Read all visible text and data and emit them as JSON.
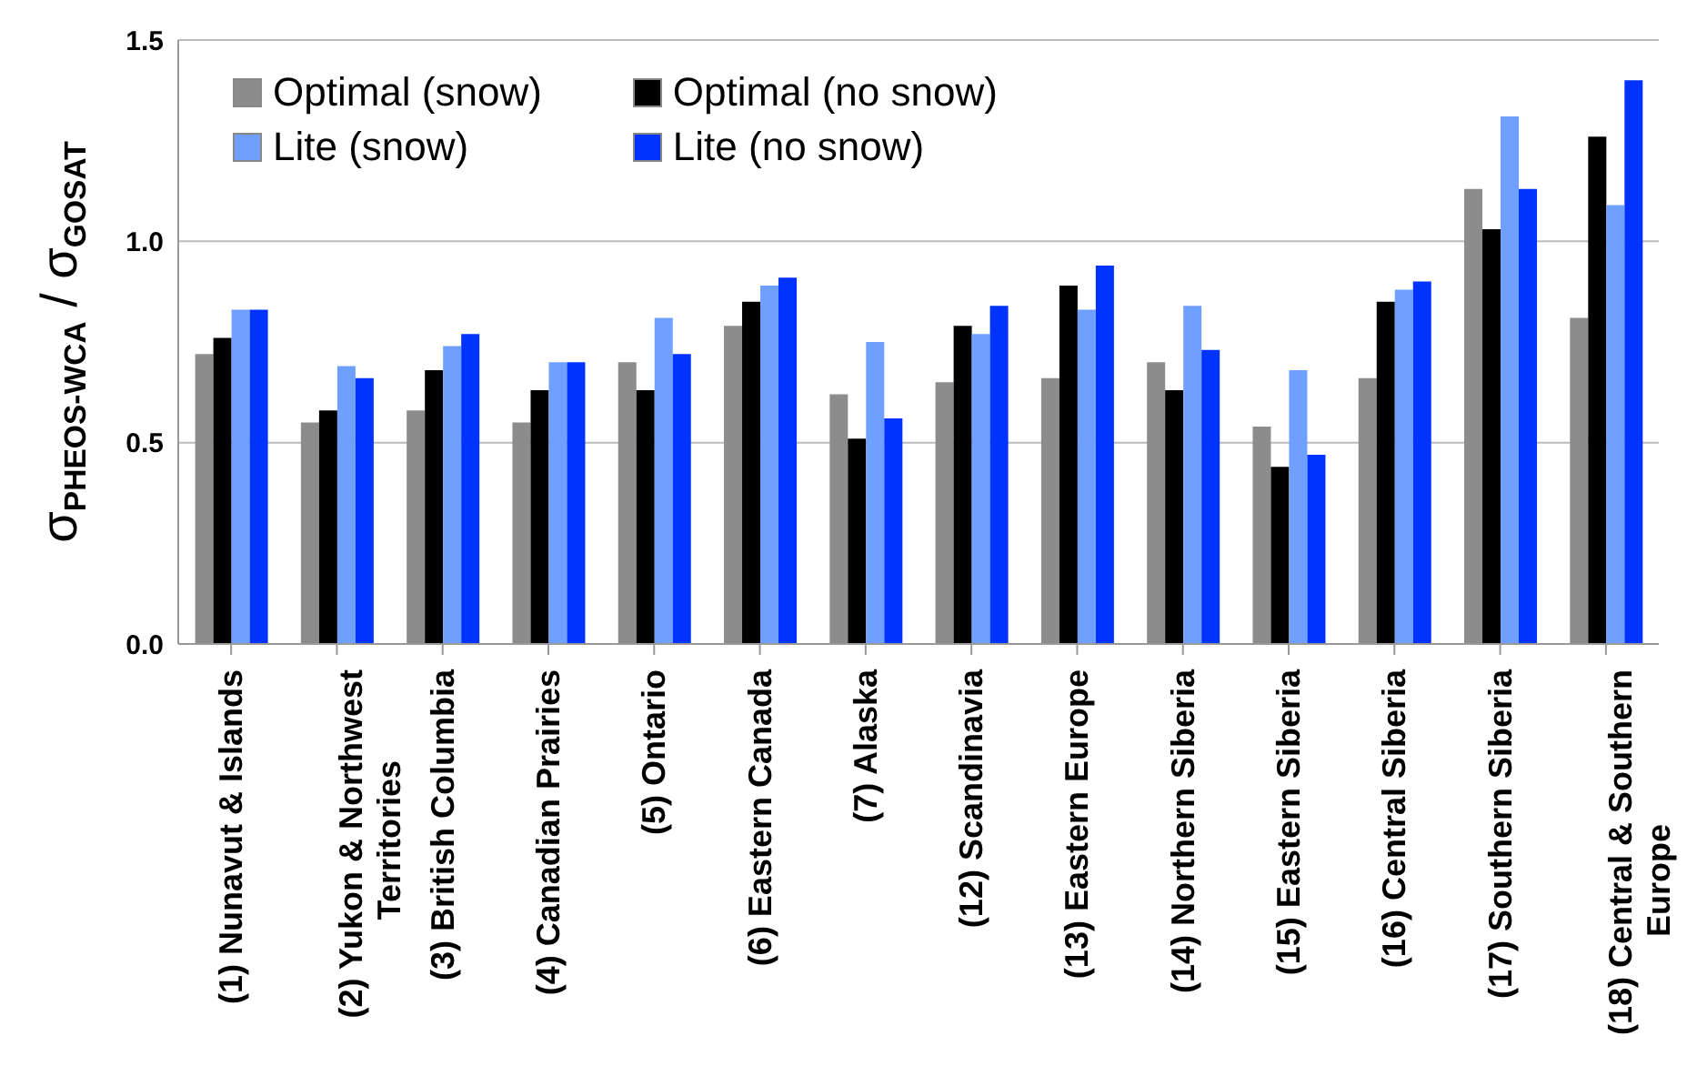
{
  "chart_data": {
    "type": "bar",
    "ylabel": "σ$_{PHEOS-WCA}$ / σ$_{GOSAT}$",
    "categories": [
      "(1) Nunavut & Islands",
      "(2) Yukon & Northwest Territories",
      "(3) British Columbia",
      "(4) Canadian Prairies",
      "(5) Ontario",
      "(6) Eastern Canada",
      "(7) Alaska",
      "(12) Scandinavia",
      "(13) Eastern Europe",
      "(14) Northern Siberia",
      "(15) Eastern Siberia",
      "(16) Central Siberia",
      "(17) Southern Siberia",
      "(18) Central & Southern Europe"
    ],
    "series": [
      {
        "name": "Optimal (snow)",
        "color": "#8c8c8c",
        "values": [
          0.72,
          0.55,
          0.58,
          0.55,
          0.7,
          0.79,
          0.62,
          0.65,
          0.66,
          0.7,
          0.54,
          0.66,
          1.13,
          0.81
        ]
      },
      {
        "name": "Optimal (no snow)",
        "color": "#000000",
        "values": [
          0.76,
          0.58,
          0.68,
          0.63,
          0.63,
          0.85,
          0.51,
          0.79,
          0.89,
          0.63,
          0.44,
          0.85,
          1.03,
          1.26
        ]
      },
      {
        "name": "Lite (snow)",
        "color": "#6fa0ff",
        "values": [
          0.83,
          0.69,
          0.74,
          0.7,
          0.81,
          0.89,
          0.75,
          0.77,
          0.83,
          0.84,
          0.68,
          0.88,
          1.31,
          1.09
        ]
      },
      {
        "name": "Lite (no snow)",
        "color": "#0033ff",
        "values": [
          0.83,
          0.66,
          0.77,
          0.7,
          0.72,
          0.91,
          0.56,
          0.84,
          0.94,
          0.73,
          0.47,
          0.9,
          1.13,
          1.4
        ]
      }
    ],
    "ylim": [
      0,
      1.5
    ],
    "yticks": [
      {
        "value": 0,
        "label": "0.0"
      },
      {
        "value": 0.5,
        "label": "0.5"
      },
      {
        "value": 1,
        "label": "1.0"
      },
      {
        "value": 1.5,
        "label": "1.5"
      }
    ],
    "grid": "y",
    "legend": "top left"
  }
}
